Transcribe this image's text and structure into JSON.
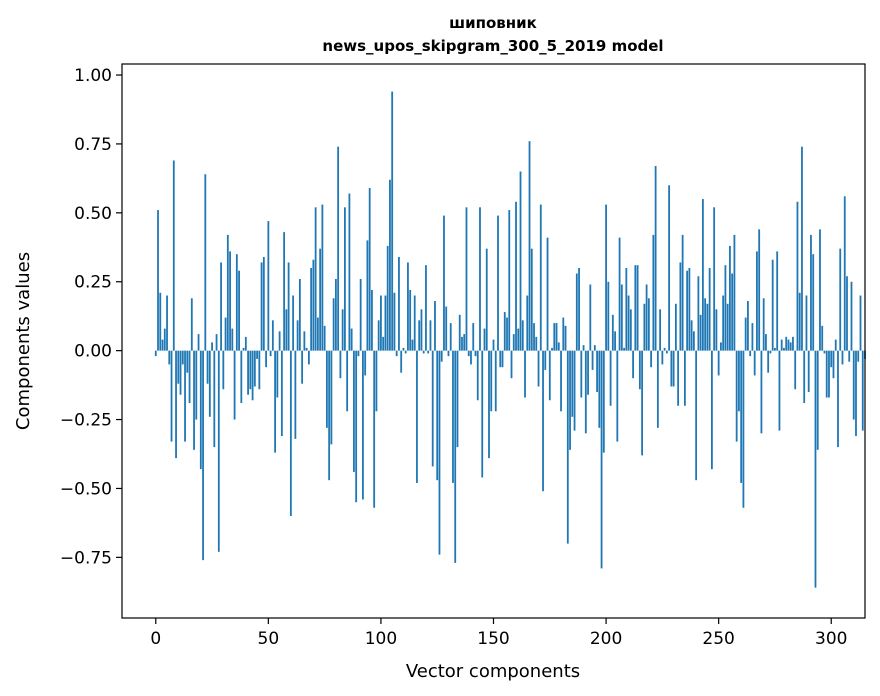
{
  "chart_data": {
    "type": "bar",
    "title": "шиповник",
    "subtitle": "news_upos_skipgram_300_5_2019 model",
    "xlabel": "Vector components",
    "ylabel": "Components values",
    "xlim": [
      -15,
      315
    ],
    "ylim": [
      -0.97,
      1.04
    ],
    "xticks": [
      0,
      50,
      100,
      150,
      200,
      250,
      300
    ],
    "xtick_labels": [
      "0",
      "50",
      "100",
      "150",
      "200",
      "250",
      "300"
    ],
    "yticks": [
      1.0,
      0.75,
      0.5,
      0.25,
      0.0,
      -0.25,
      -0.5,
      -0.75
    ],
    "ytick_labels": [
      "1.00",
      "0.75",
      "0.50",
      "0.25",
      "0.00",
      "−0.25",
      "−0.50",
      "−0.75"
    ],
    "bar_color": "#1f77b4",
    "series": [
      {
        "name": "шиповник",
        "values": [
          -0.02,
          0.51,
          0.21,
          0.04,
          0.08,
          0.2,
          -0.05,
          -0.33,
          0.69,
          -0.39,
          -0.12,
          -0.16,
          -0.05,
          -0.33,
          -0.08,
          -0.19,
          0.19,
          -0.36,
          -0.25,
          0.06,
          -0.43,
          -0.76,
          0.64,
          -0.12,
          -0.24,
          0.03,
          -0.35,
          0.06,
          -0.73,
          0.32,
          -0.14,
          0.12,
          0.42,
          0.36,
          0.08,
          -0.25,
          0.35,
          0.29,
          -0.19,
          0.01,
          0.05,
          -0.16,
          -0.14,
          -0.18,
          -0.13,
          -0.03,
          -0.14,
          0.32,
          0.34,
          -0.06,
          0.47,
          -0.02,
          0.11,
          -0.37,
          -0.17,
          0.07,
          -0.31,
          0.43,
          0.15,
          0.32,
          -0.6,
          0.2,
          -0.32,
          0.11,
          0.26,
          -0.12,
          0.07,
          0.01,
          -0.05,
          0.3,
          0.33,
          0.52,
          0.12,
          0.37,
          0.53,
          0.09,
          -0.28,
          -0.47,
          -0.34,
          0.19,
          0.26,
          0.74,
          -0.1,
          0.15,
          0.52,
          -0.22,
          0.57,
          0.08,
          -0.44,
          -0.55,
          -0.02,
          0.26,
          -0.54,
          -0.09,
          0.4,
          0.59,
          0.22,
          -0.57,
          -0.22,
          0.11,
          0.2,
          0.05,
          0.2,
          0.38,
          0.62,
          0.94,
          0.21,
          -0.02,
          0.34,
          -0.08,
          0.01,
          -0.01,
          0.32,
          0.22,
          0.04,
          0.2,
          -0.48,
          0.11,
          0.15,
          -0.01,
          0.31,
          -0.01,
          0.11,
          -0.42,
          0.18,
          -0.47,
          -0.74,
          -0.04,
          0.49,
          0.16,
          -0.02,
          0.1,
          -0.48,
          -0.77,
          -0.35,
          0.13,
          0.05,
          0.06,
          0.52,
          -0.02,
          -0.05,
          0.1,
          -0.02,
          -0.18,
          0.52,
          -0.46,
          0.08,
          0.37,
          -0.39,
          -0.22,
          0.04,
          -0.22,
          0.49,
          -0.06,
          -0.06,
          0.14,
          0.12,
          0.51,
          -0.1,
          0.06,
          0.54,
          0.08,
          0.65,
          0.11,
          -0.17,
          0.2,
          0.76,
          0.37,
          0.1,
          0.05,
          -0.13,
          0.53,
          -0.51,
          -0.07,
          0.41,
          -0.18,
          0.01,
          0.1,
          0.1,
          0.03,
          -0.22,
          0.12,
          0.09,
          -0.7,
          -0.36,
          -0.24,
          -0.29,
          0.28,
          0.3,
          -0.17,
          0.02,
          -0.3,
          -0.16,
          0.24,
          -0.07,
          0.02,
          -0.15,
          -0.28,
          -0.79,
          -0.37,
          0.53,
          0.25,
          -0.2,
          0.13,
          0.07,
          -0.33,
          0.41,
          0.24,
          0.01,
          0.3,
          0.2,
          0.15,
          -0.1,
          0.31,
          0.31,
          -0.14,
          -0.38,
          0.17,
          0.24,
          0.19,
          -0.06,
          0.42,
          0.67,
          -0.28,
          0.15,
          -0.05,
          0.01,
          -0.01,
          0.6,
          -0.13,
          -0.13,
          0.17,
          -0.2,
          0.32,
          0.42,
          -0.2,
          0.29,
          0.3,
          0.11,
          0.07,
          -0.47,
          0.27,
          0.13,
          0.55,
          0.19,
          0.17,
          0.3,
          -0.43,
          0.52,
          0.15,
          -0.09,
          0.03,
          0.2,
          0.31,
          0.17,
          0.38,
          0.28,
          0.42,
          -0.33,
          -0.22,
          -0.48,
          -0.57,
          0.12,
          0.18,
          -0.02,
          0.1,
          -0.09,
          0.36,
          0.44,
          -0.3,
          0.19,
          0.06,
          -0.08,
          -0.01,
          0.33,
          0.01,
          0.36,
          -0.29,
          0.04,
          0.01,
          0.05,
          0.04,
          0.03,
          0.05,
          -0.14,
          0.54,
          0.21,
          0.74,
          -0.19,
          0.2,
          -0.15,
          0.42,
          0.35,
          -0.86,
          -0.36,
          0.44,
          0.09,
          -0.01,
          -0.17,
          -0.17,
          -0.06,
          -0.1,
          0.04,
          -0.35,
          0.37,
          -0.05,
          0.56,
          0.27,
          -0.04,
          0.25,
          -0.25,
          -0.31,
          -0.04,
          0.2,
          -0.29,
          -0.03
        ]
      }
    ]
  }
}
